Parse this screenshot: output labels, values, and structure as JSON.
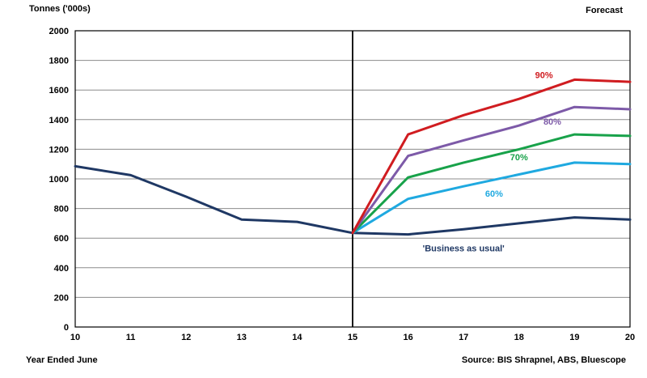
{
  "chart_data": {
    "type": "line",
    "ylabel": "Tonnes ('000s)",
    "xlabel": "Year Ended June",
    "forecast_label": "Forecast",
    "source": "Source: BIS Shrapnel, ABS, Bluescope",
    "x_ticks": [
      "10",
      "11",
      "12",
      "13",
      "14",
      "15",
      "16",
      "17",
      "18",
      "19",
      "20"
    ],
    "ylim": [
      0,
      2000
    ],
    "y_ticks": [
      0,
      200,
      400,
      600,
      800,
      1000,
      1200,
      1400,
      1600,
      1800,
      2000
    ],
    "y_tick_labels": [
      "0",
      "200",
      "400",
      "600",
      "800",
      "1000",
      "1200",
      "1400",
      "1600",
      "1800",
      "2000"
    ],
    "grid": true,
    "forecast_start": 15,
    "series": [
      {
        "name": "Historical",
        "color": "#1f3864",
        "x": [
          10,
          11,
          12,
          13,
          14,
          15
        ],
        "y": [
          1085,
          1025,
          880,
          725,
          710,
          635
        ]
      },
      {
        "name": "'Business as usual'",
        "color": "#1f3864",
        "x": [
          15,
          16,
          17,
          18,
          19,
          20
        ],
        "y": [
          635,
          625,
          660,
          700,
          740,
          725
        ]
      },
      {
        "name": "60%",
        "color": "#1fa9e0",
        "x": [
          15,
          16,
          17,
          18,
          19,
          20
        ],
        "y": [
          635,
          865,
          950,
          1030,
          1110,
          1100
        ]
      },
      {
        "name": "70%",
        "color": "#18a24a",
        "x": [
          15,
          16,
          17,
          18,
          19,
          20
        ],
        "y": [
          635,
          1010,
          1110,
          1200,
          1300,
          1290
        ]
      },
      {
        "name": "80%",
        "color": "#7d5aa8",
        "x": [
          15,
          16,
          17,
          18,
          19,
          20
        ],
        "y": [
          635,
          1155,
          1260,
          1360,
          1485,
          1470
        ]
      },
      {
        "name": "90%",
        "color": "#d01c20",
        "x": [
          15,
          16,
          17,
          18,
          19,
          20
        ],
        "y": [
          635,
          1300,
          1430,
          1540,
          1670,
          1655
        ]
      }
    ],
    "annotations": [
      {
        "text": "90%",
        "color": "#d01c20",
        "x": 18.45,
        "y": 1680
      },
      {
        "text": "80%",
        "color": "#7d5aa8",
        "x": 18.6,
        "y": 1365
      },
      {
        "text": "70%",
        "color": "#18a24a",
        "x": 18.0,
        "y": 1125
      },
      {
        "text": "60%",
        "color": "#1fa9e0",
        "x": 17.55,
        "y": 880
      },
      {
        "text": "'Business as usual'",
        "color": "#1f3864",
        "x": 17.0,
        "y": 510
      }
    ]
  }
}
